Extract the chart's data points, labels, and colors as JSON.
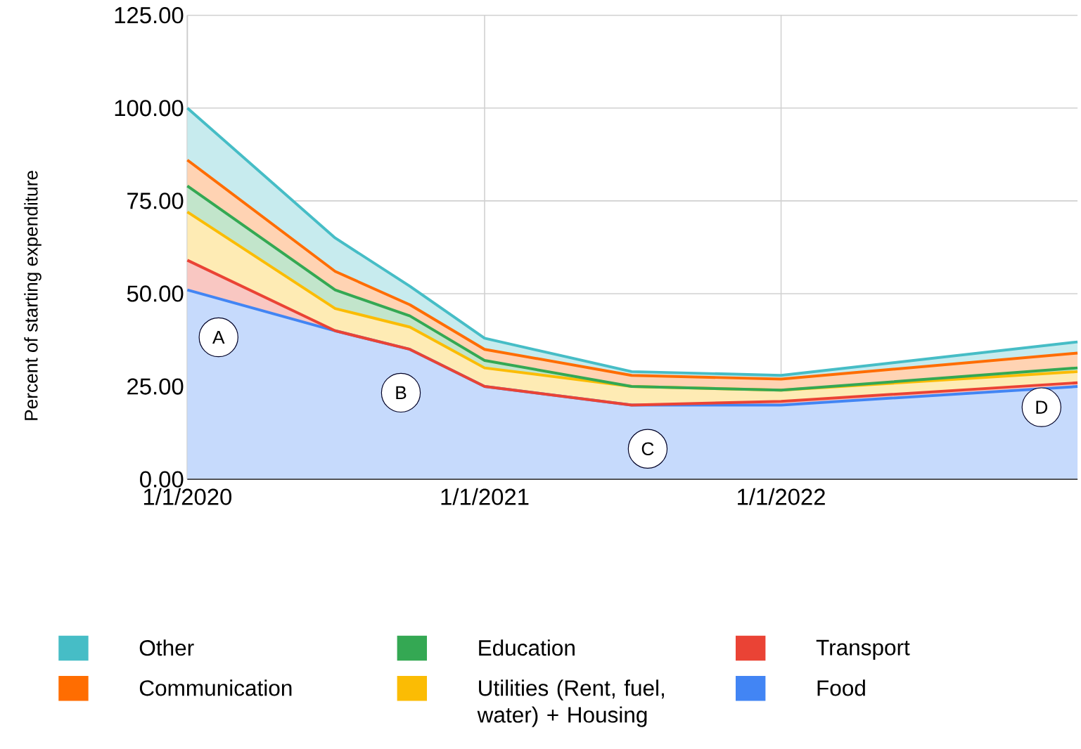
{
  "chart_data": {
    "type": "area",
    "stacked": true,
    "ylabel": "Percent of starting expenditure",
    "x": [
      "2020-01-01",
      "2020-07-01",
      "2020-10-01",
      "2021-01-01",
      "2021-07-01",
      "2022-01-01",
      "2023-01-01"
    ],
    "series": [
      {
        "name": "Food",
        "color": "#4285f4",
        "values": [
          51,
          40,
          35,
          25,
          20,
          20,
          25
        ]
      },
      {
        "name": "Transport",
        "color": "#ea4335",
        "values": [
          8,
          0,
          0,
          0,
          0,
          1,
          1
        ]
      },
      {
        "name": "Utilities (Rent, fuel, water) + Housing",
        "color": "#fbbc04",
        "values": [
          13,
          6,
          6,
          5,
          5,
          3,
          3
        ]
      },
      {
        "name": "Education",
        "color": "#34a853",
        "values": [
          7,
          5,
          3,
          2,
          0,
          0,
          1
        ]
      },
      {
        "name": "Communication",
        "color": "#ff6d01",
        "values": [
          7,
          5,
          3,
          3,
          3,
          3,
          4
        ]
      },
      {
        "name": "Other",
        "color": "#46bdc6",
        "values": [
          14,
          9,
          5,
          3,
          1,
          1,
          3
        ]
      }
    ],
    "xlim": [
      "2020-01-01",
      "2023-01-01"
    ],
    "xticks": [
      {
        "value": "2020-01-01",
        "label": "1/1/2020"
      },
      {
        "value": "2021-01-01",
        "label": "1/1/2021"
      },
      {
        "value": "2022-01-01",
        "label": "1/1/2022"
      }
    ],
    "ylim": [
      0,
      125
    ],
    "yticks": [
      {
        "value": 0,
        "label": "0.00"
      },
      {
        "value": 25,
        "label": "25.00"
      },
      {
        "value": 50,
        "label": "50.00"
      },
      {
        "value": 75,
        "label": "75.00"
      },
      {
        "value": 100,
        "label": "100.00"
      },
      {
        "value": 125,
        "label": "125.00"
      }
    ],
    "grid": true,
    "legend": "bottom",
    "annotations": [
      "A",
      "B",
      "C",
      "D"
    ]
  }
}
